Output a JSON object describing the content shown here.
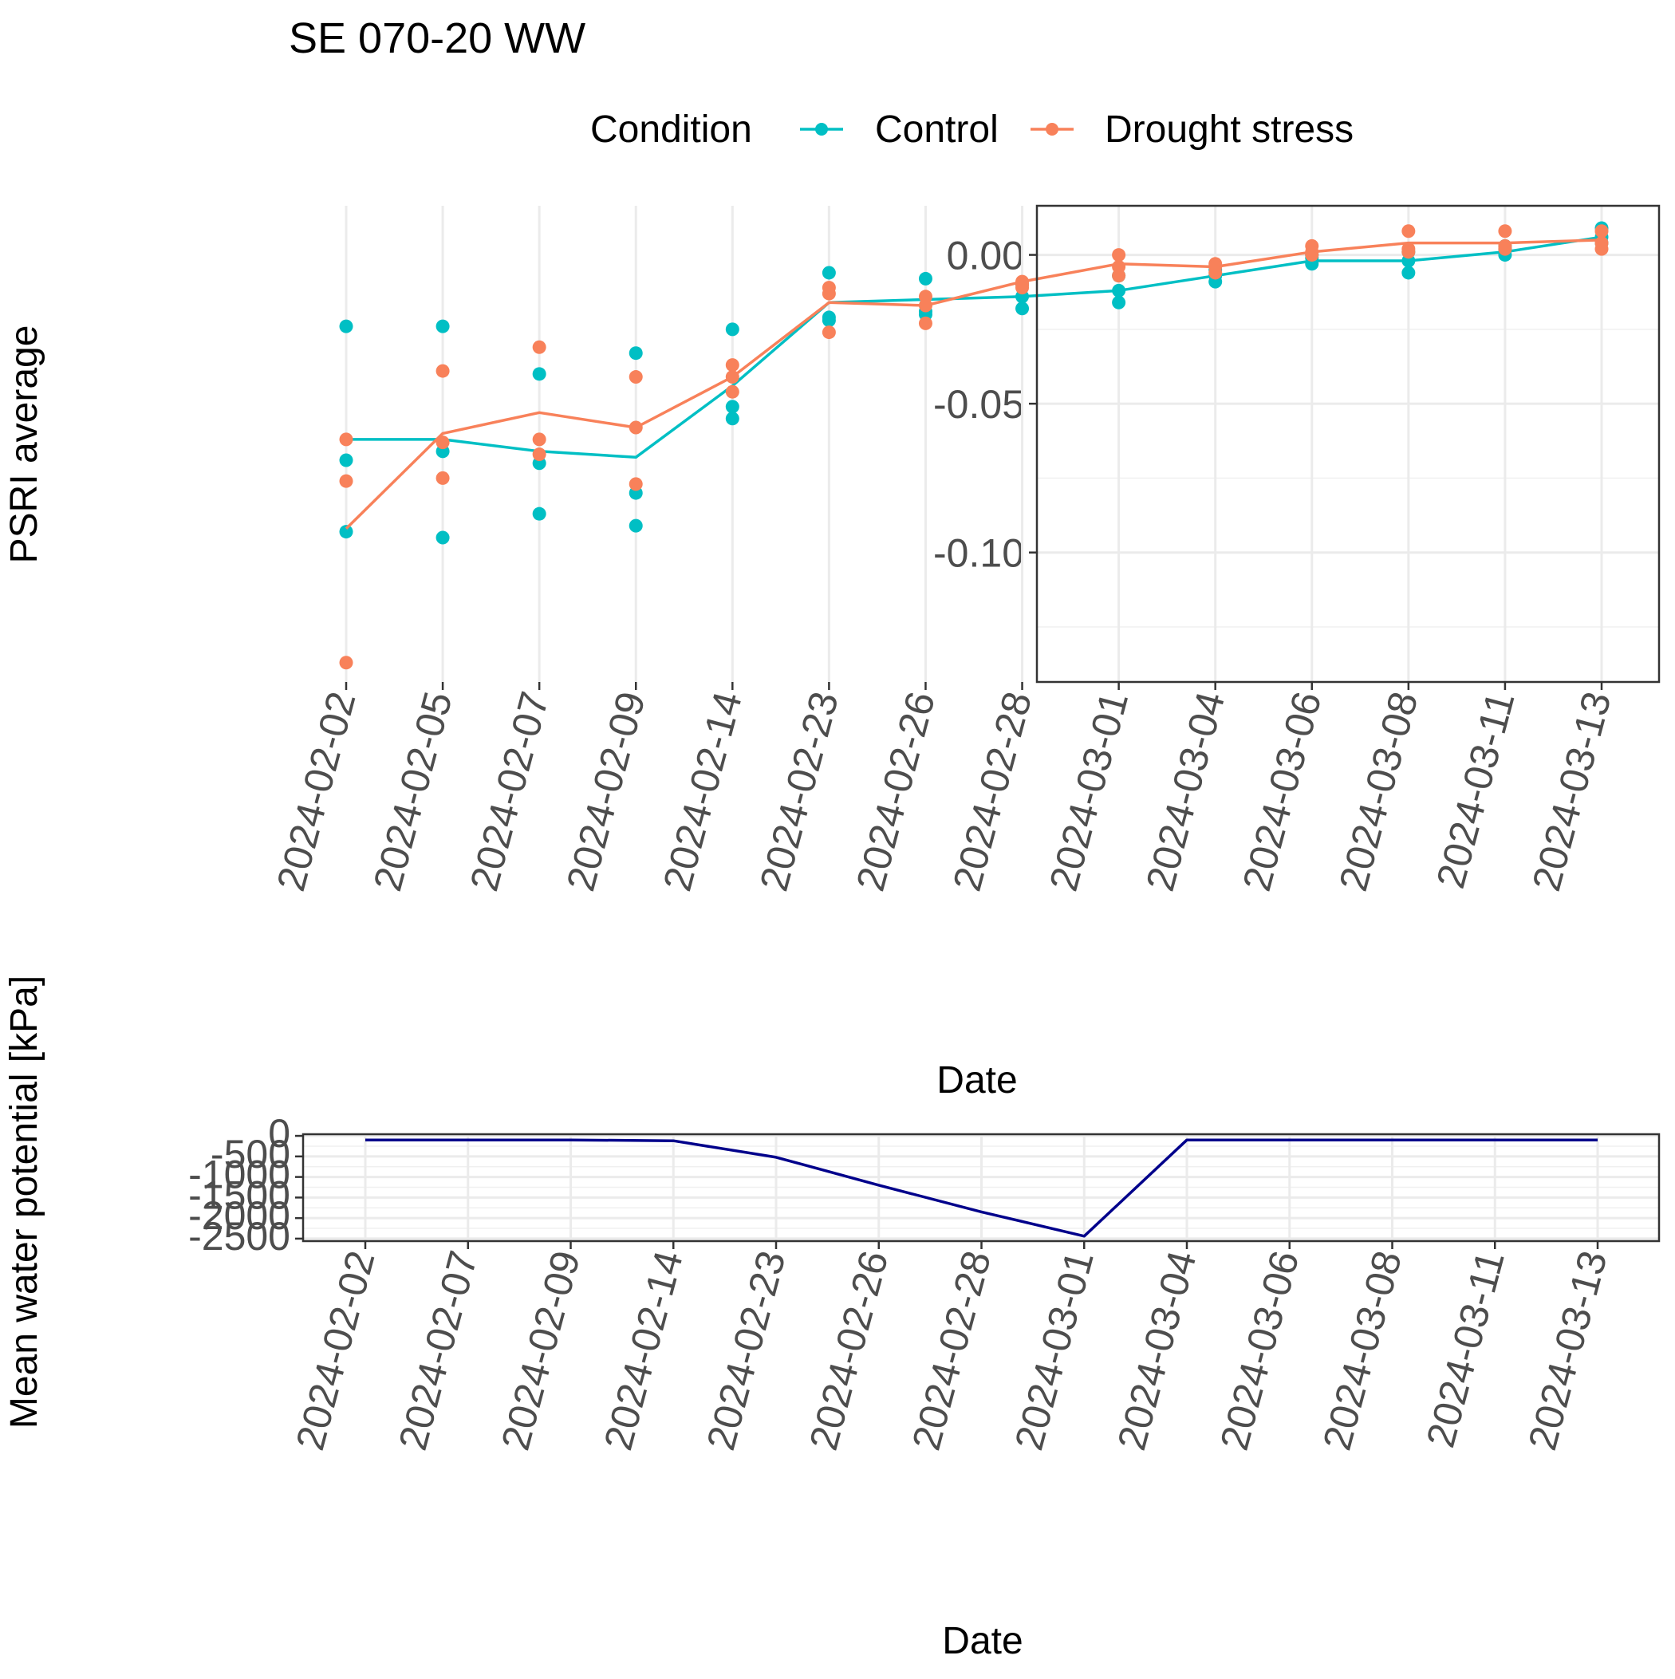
{
  "title": "SE 070-20 WW",
  "legend": {
    "title": "Condition",
    "entries": [
      {
        "label": "Control",
        "color": "#00BFC4"
      },
      {
        "label": "Drought stress",
        "color": "#F8815A"
      }
    ]
  },
  "chart_data": [
    {
      "type": "scatter",
      "name": "psri-panel",
      "xlabel": "Date",
      "ylabel": "PSRI average",
      "x_categories": [
        "2024-02-02",
        "2024-02-05",
        "2024-02-07",
        "2024-02-09",
        "2024-02-14",
        "2024-02-23",
        "2024-02-26",
        "2024-02-28",
        "2024-03-01",
        "2024-03-04",
        "2024-03-06",
        "2024-03-08",
        "2024-03-11",
        "2024-03-13"
      ],
      "yticks": [
        0.0,
        -0.05,
        -0.1
      ],
      "ytick_labels": [
        "0.00",
        "-0.05",
        "-0.10"
      ],
      "ylim": [
        -0.1435,
        0.0165
      ],
      "grid": true,
      "legend_position": "top",
      "series": [
        {
          "name": "Control",
          "color": "#00BFC4",
          "points": [
            [
              "2024-02-02",
              -0.024
            ],
            [
              "2024-02-02",
              -0.069
            ],
            [
              "2024-02-02",
              -0.093
            ],
            [
              "2024-02-05",
              -0.024
            ],
            [
              "2024-02-05",
              -0.066
            ],
            [
              "2024-02-05",
              -0.095
            ],
            [
              "2024-02-07",
              -0.04
            ],
            [
              "2024-02-07",
              -0.07
            ],
            [
              "2024-02-07",
              -0.087
            ],
            [
              "2024-02-09",
              -0.033
            ],
            [
              "2024-02-09",
              -0.08
            ],
            [
              "2024-02-09",
              -0.091
            ],
            [
              "2024-02-14",
              -0.025
            ],
            [
              "2024-02-14",
              -0.051
            ],
            [
              "2024-02-14",
              -0.055
            ],
            [
              "2024-02-23",
              -0.006
            ],
            [
              "2024-02-23",
              -0.021
            ],
            [
              "2024-02-23",
              -0.022
            ],
            [
              "2024-02-26",
              -0.008
            ],
            [
              "2024-02-26",
              -0.019
            ],
            [
              "2024-02-26",
              -0.02
            ],
            [
              "2024-02-28",
              -0.01
            ],
            [
              "2024-02-28",
              -0.014
            ],
            [
              "2024-02-28",
              -0.018
            ],
            [
              "2024-03-01",
              -0.007
            ],
            [
              "2024-03-01",
              -0.012
            ],
            [
              "2024-03-01",
              -0.016
            ],
            [
              "2024-03-04",
              -0.005
            ],
            [
              "2024-03-04",
              -0.007
            ],
            [
              "2024-03-04",
              -0.009
            ],
            [
              "2024-03-06",
              0.0
            ],
            [
              "2024-03-06",
              -0.001
            ],
            [
              "2024-03-06",
              -0.003
            ],
            [
              "2024-03-08",
              0.001
            ],
            [
              "2024-03-08",
              -0.002
            ],
            [
              "2024-03-08",
              -0.006
            ],
            [
              "2024-03-11",
              0.003
            ],
            [
              "2024-03-11",
              0.002
            ],
            [
              "2024-03-11",
              0.0
            ],
            [
              "2024-03-13",
              0.009
            ],
            [
              "2024-03-13",
              0.006
            ],
            [
              "2024-03-13",
              0.004
            ]
          ],
          "line": [
            [
              "2024-02-02",
              -0.062
            ],
            [
              "2024-02-05",
              -0.062
            ],
            [
              "2024-02-07",
              -0.066
            ],
            [
              "2024-02-09",
              -0.068
            ],
            [
              "2024-02-14",
              -0.044
            ],
            [
              "2024-02-23",
              -0.016
            ],
            [
              "2024-02-26",
              -0.015
            ],
            [
              "2024-02-28",
              -0.014
            ],
            [
              "2024-03-01",
              -0.012
            ],
            [
              "2024-03-04",
              -0.007
            ],
            [
              "2024-03-06",
              -0.002
            ],
            [
              "2024-03-08",
              -0.002
            ],
            [
              "2024-03-11",
              0.001
            ],
            [
              "2024-03-13",
              0.006
            ]
          ]
        },
        {
          "name": "Drought stress",
          "color": "#F8815A",
          "points": [
            [
              "2024-02-02",
              -0.062
            ],
            [
              "2024-02-02",
              -0.076
            ],
            [
              "2024-02-02",
              -0.137
            ],
            [
              "2024-02-05",
              -0.039
            ],
            [
              "2024-02-05",
              -0.063
            ],
            [
              "2024-02-05",
              -0.075
            ],
            [
              "2024-02-07",
              -0.031
            ],
            [
              "2024-02-07",
              -0.062
            ],
            [
              "2024-02-07",
              -0.067
            ],
            [
              "2024-02-09",
              -0.041
            ],
            [
              "2024-02-09",
              -0.058
            ],
            [
              "2024-02-09",
              -0.077
            ],
            [
              "2024-02-14",
              -0.037
            ],
            [
              "2024-02-14",
              -0.041
            ],
            [
              "2024-02-14",
              -0.046
            ],
            [
              "2024-02-23",
              -0.011
            ],
            [
              "2024-02-23",
              -0.013
            ],
            [
              "2024-02-23",
              -0.026
            ],
            [
              "2024-02-26",
              -0.014
            ],
            [
              "2024-02-26",
              -0.017
            ],
            [
              "2024-02-26",
              -0.023
            ],
            [
              "2024-02-28",
              -0.009
            ],
            [
              "2024-02-28",
              -0.01
            ],
            [
              "2024-02-28",
              -0.011
            ],
            [
              "2024-03-01",
              0.0
            ],
            [
              "2024-03-01",
              -0.004
            ],
            [
              "2024-03-01",
              -0.007
            ],
            [
              "2024-03-04",
              -0.003
            ],
            [
              "2024-03-04",
              -0.004
            ],
            [
              "2024-03-04",
              -0.006
            ],
            [
              "2024-03-06",
              0.003
            ],
            [
              "2024-03-06",
              0.001
            ],
            [
              "2024-03-06",
              0.0
            ],
            [
              "2024-03-08",
              0.008
            ],
            [
              "2024-03-08",
              0.002
            ],
            [
              "2024-03-08",
              0.001
            ],
            [
              "2024-03-11",
              0.008
            ],
            [
              "2024-03-11",
              0.003
            ],
            [
              "2024-03-11",
              0.002
            ],
            [
              "2024-03-13",
              0.008
            ],
            [
              "2024-03-13",
              0.004
            ],
            [
              "2024-03-13",
              0.002
            ]
          ],
          "line": [
            [
              "2024-02-02",
              -0.092
            ],
            [
              "2024-02-05",
              -0.06
            ],
            [
              "2024-02-07",
              -0.053
            ],
            [
              "2024-02-09",
              -0.058
            ],
            [
              "2024-02-14",
              -0.041
            ],
            [
              "2024-02-23",
              -0.016
            ],
            [
              "2024-02-26",
              -0.017
            ],
            [
              "2024-02-28",
              -0.009
            ],
            [
              "2024-03-01",
              -0.003
            ],
            [
              "2024-03-04",
              -0.004
            ],
            [
              "2024-03-06",
              0.001
            ],
            [
              "2024-03-08",
              0.004
            ],
            [
              "2024-03-11",
              0.004
            ],
            [
              "2024-03-13",
              0.005
            ]
          ]
        }
      ]
    },
    {
      "type": "line",
      "name": "water-potential-panel",
      "xlabel": "Date",
      "ylabel": "Mean water potential [kPa]",
      "x_categories": [
        "2024-02-02",
        "2024-02-07",
        "2024-02-09",
        "2024-02-14",
        "2024-02-23",
        "2024-02-26",
        "2024-02-28",
        "2024-03-01",
        "2024-03-04",
        "2024-03-06",
        "2024-03-08",
        "2024-03-11",
        "2024-03-13"
      ],
      "yticks": [
        0,
        -500,
        -1000,
        -1500,
        -2000,
        -2500
      ],
      "ytick_labels": [
        "0",
        "-500",
        "-1000",
        "-1500",
        "-2000",
        "-2500"
      ],
      "ylim": [
        -2560,
        40
      ],
      "grid": true,
      "series": [
        {
          "color": "#00008B",
          "values": [
            -100,
            -100,
            -100,
            -120,
            -520,
            -1200,
            -1850,
            -2440,
            -100,
            -100,
            -100,
            -100,
            -100
          ]
        }
      ]
    }
  ]
}
